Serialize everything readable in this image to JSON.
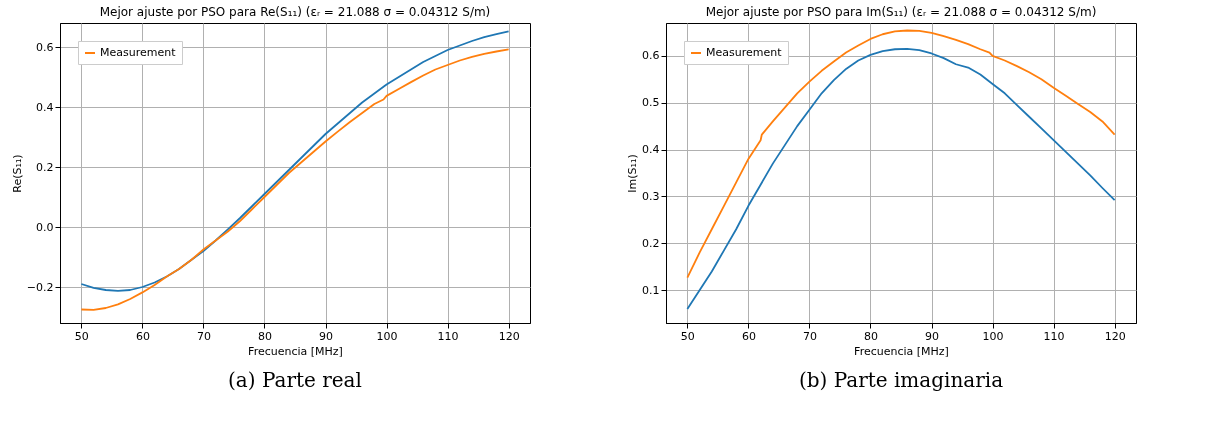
{
  "chart_data": [
    {
      "type": "line",
      "title": "Mejor ajuste por PSO para Re(S₁₁) (εᵣ = 21.088  σ = 0.04312 S/m)",
      "xlabel": "Frecuencia [MHz]",
      "ylabel": "Re(S₁₁)",
      "annotations": [
        "(a) Parte real"
      ],
      "xlim": [
        46.5,
        123.5
      ],
      "xticks": [
        50,
        60,
        70,
        80,
        90,
        100,
        110,
        120
      ],
      "ylim": [
        -0.32,
        0.68
      ],
      "yticks": [
        -0.2,
        {
          "value": 0,
          "label": "0.0"
        },
        0.2,
        0.4,
        0.6
      ],
      "grid": true,
      "legend": "top left",
      "marker": "none",
      "line_style": "solid",
      "series": [
        {
          "color": "#1f77b4",
          "x": [
            50,
            52,
            54,
            56,
            58,
            60,
            62,
            64,
            66,
            68,
            70,
            72,
            74,
            76,
            78,
            80,
            82,
            84,
            86,
            88,
            90,
            92,
            94,
            96,
            98,
            100,
            102,
            104,
            106,
            108,
            110,
            112,
            114,
            116,
            118,
            120
          ],
          "values": [
            -0.19,
            -0.203,
            -0.21,
            -0.213,
            -0.21,
            -0.2,
            -0.185,
            -0.165,
            -0.14,
            -0.11,
            -0.08,
            -0.045,
            -0.008,
            0.03,
            0.07,
            0.11,
            0.15,
            0.19,
            0.23,
            0.27,
            0.31,
            0.345,
            0.38,
            0.415,
            0.445,
            0.475,
            0.5,
            0.525,
            0.55,
            0.57,
            0.59,
            0.605,
            0.62,
            0.633,
            0.643,
            0.652
          ]
        },
        {
          "name": "Measurement",
          "color": "#ff7f0e",
          "x": [
            50,
            52,
            54,
            56,
            58,
            60,
            62,
            64,
            66,
            68,
            70,
            72,
            74,
            76,
            78,
            80,
            82,
            84,
            86,
            88,
            90,
            92,
            94,
            96,
            98,
            99.5,
            100,
            102,
            104,
            106,
            108,
            110,
            112,
            114,
            116,
            118,
            120
          ],
          "values": [
            -0.275,
            -0.276,
            -0.27,
            -0.258,
            -0.24,
            -0.218,
            -0.193,
            -0.165,
            -0.14,
            -0.11,
            -0.075,
            -0.045,
            -0.015,
            0.02,
            0.06,
            0.1,
            0.14,
            0.18,
            0.215,
            0.25,
            0.285,
            0.318,
            0.35,
            0.38,
            0.41,
            0.425,
            0.437,
            0.46,
            0.483,
            0.505,
            0.525,
            0.54,
            0.555,
            0.567,
            0.577,
            0.585,
            0.592
          ]
        }
      ]
    },
    {
      "type": "line",
      "title": "Mejor ajuste por PSO para Im(S₁₁) (εᵣ = 21.088  σ = 0.04312 S/m)",
      "xlabel": "Frecuencia [MHz]",
      "ylabel": "Im(S₁₁)",
      "annotations": [
        "(b) Parte imaginaria"
      ],
      "xlim": [
        46.5,
        123.5
      ],
      "xticks": [
        50,
        60,
        70,
        80,
        90,
        100,
        110,
        120
      ],
      "ylim": [
        0.03,
        0.67
      ],
      "yticks": [
        0.1,
        0.2,
        0.3,
        0.4,
        0.5,
        0.6
      ],
      "grid": true,
      "legend": "top left",
      "marker": "none",
      "line_style": "solid",
      "series": [
        {
          "color": "#1f77b4",
          "x": [
            50,
            52,
            54,
            56,
            58,
            60,
            62,
            64,
            66,
            68,
            70,
            72,
            74,
            76,
            78,
            80,
            82,
            84,
            86,
            88,
            90,
            92,
            94,
            96,
            98,
            100,
            102,
            104,
            106,
            108,
            110,
            112,
            114,
            116,
            118,
            120
          ],
          "values": [
            0.06,
            0.1,
            0.14,
            0.185,
            0.23,
            0.28,
            0.325,
            0.37,
            0.41,
            0.45,
            0.485,
            0.52,
            0.548,
            0.572,
            0.59,
            0.602,
            0.61,
            0.614,
            0.615,
            0.612,
            0.605,
            0.595,
            0.582,
            0.575,
            0.56,
            0.54,
            0.52,
            0.495,
            0.47,
            0.445,
            0.42,
            0.395,
            0.37,
            0.345,
            0.318,
            0.292
          ]
        },
        {
          "name": "Measurement",
          "color": "#ff7f0e",
          "x": [
            50,
            52,
            54,
            56,
            58,
            60,
            62,
            62.2,
            64,
            66,
            68,
            70,
            72,
            74,
            76,
            78,
            80,
            82,
            84,
            86,
            88,
            90,
            92,
            94,
            96,
            98,
            99.5,
            100,
            102,
            104,
            106,
            108,
            110,
            112,
            114,
            116,
            118,
            120
          ],
          "values": [
            0.127,
            0.18,
            0.23,
            0.28,
            0.33,
            0.38,
            0.42,
            0.432,
            0.46,
            0.49,
            0.52,
            0.545,
            0.568,
            0.588,
            0.607,
            0.622,
            0.636,
            0.646,
            0.652,
            0.654,
            0.653,
            0.649,
            0.642,
            0.634,
            0.625,
            0.614,
            0.607,
            0.6,
            0.59,
            0.578,
            0.565,
            0.55,
            0.532,
            0.515,
            0.497,
            0.48,
            0.46,
            0.432
          ]
        }
      ]
    }
  ]
}
